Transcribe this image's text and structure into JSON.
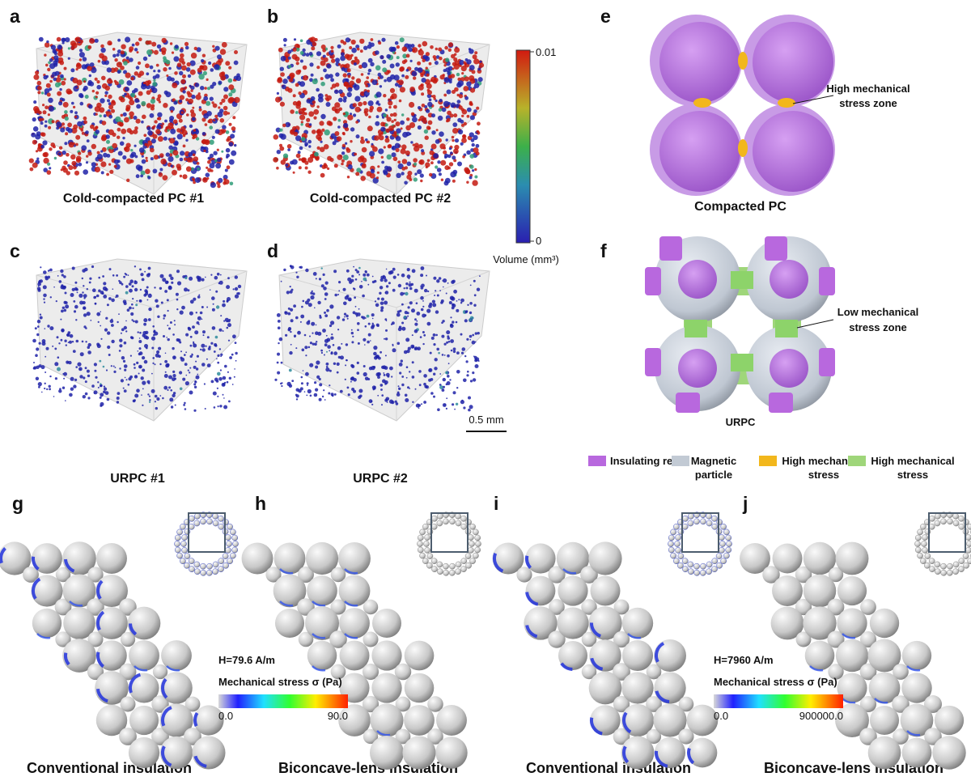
{
  "panels": [
    {
      "letter": "a",
      "caption": "Cold-compacted PC #1"
    },
    {
      "letter": "b",
      "caption": "Cold-compacted PC #2"
    },
    {
      "letter": "c",
      "caption": "URPC #1"
    },
    {
      "letter": "d",
      "caption": "URPC #2"
    },
    {
      "letter": "e",
      "caption": "Compacted PC",
      "annotation": [
        "High mechanical",
        "stress zone"
      ]
    },
    {
      "letter": "f",
      "caption": "URPC",
      "annotation": [
        "Low mechanical",
        "stress zone"
      ]
    },
    {
      "letter": "g",
      "caption": "Conventional insulation"
    },
    {
      "letter": "h",
      "caption": "Biconcave-lens insulation",
      "field": "H=79.6 A/m",
      "colorbar_title": "Mechanical stress σ (Pa)",
      "colorbar_min": "0.0",
      "colorbar_max": "90.0"
    },
    {
      "letter": "i",
      "caption": "Conventional insulation"
    },
    {
      "letter": "j",
      "caption": "Biconcave-lens insulation",
      "field": "H=7960 A/m",
      "colorbar_title": "Mechanical stress σ (Pa)",
      "colorbar_min": "0.0",
      "colorbar_max": "900000.0"
    }
  ],
  "volume_colorbar": {
    "max": "0.01",
    "min": "0",
    "title": "Volume (mm³)"
  },
  "scale_bar": "0.5 mm",
  "legend": [
    [
      "Insulating resin"
    ],
    [
      "Magnetic",
      "particle"
    ],
    [
      "High mechanical",
      "stress"
    ],
    [
      "High mechanical",
      "stress"
    ]
  ]
}
